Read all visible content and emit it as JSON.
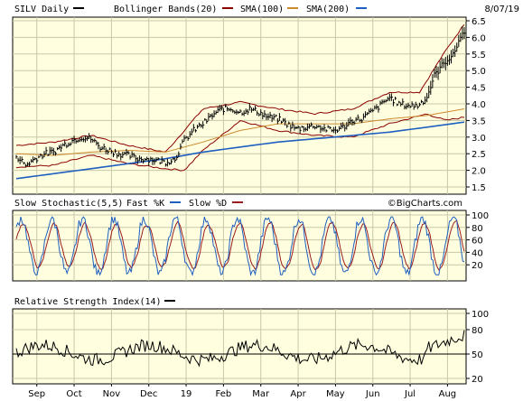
{
  "chart_data": [
    {
      "type": "line",
      "title": "SILV Daily",
      "date": "8/07/19",
      "watermark": "©BigCharts.com",
      "legend": [
        {
          "name": "SILV Daily",
          "color": "#000000"
        },
        {
          "name": "Bollinger Bands(20)",
          "color": "#8b0000"
        },
        {
          "name": "SMA(100)",
          "color": "#9b1c1c"
        },
        {
          "name": "SMA(200)",
          "color": "#cc8a2e"
        },
        {
          "name": "",
          "color": "#1f5fbf"
        }
      ],
      "y_ticks": [
        "6.5",
        "6.0",
        "5.5",
        "5.0",
        "4.5",
        "4.0",
        "3.5",
        "3.0",
        "2.5",
        "2.0",
        "1.5"
      ],
      "ylim": [
        1.5,
        6.5
      ],
      "price": [
        {
          "m": 0.0,
          "v": 2.45
        },
        {
          "m": 0.25,
          "v": 2.15
        },
        {
          "m": 0.5,
          "v": 2.35
        },
        {
          "m": 0.75,
          "v": 2.5
        },
        {
          "m": 1.0,
          "v": 2.55
        },
        {
          "m": 1.25,
          "v": 2.75
        },
        {
          "m": 1.5,
          "v": 2.9
        },
        {
          "m": 1.75,
          "v": 3.0
        },
        {
          "m": 2.0,
          "v": 2.95
        },
        {
          "m": 2.25,
          "v": 2.7
        },
        {
          "m": 2.5,
          "v": 2.6
        },
        {
          "m": 2.75,
          "v": 2.5
        },
        {
          "m": 3.0,
          "v": 2.45
        },
        {
          "m": 3.25,
          "v": 2.35
        },
        {
          "m": 3.5,
          "v": 2.35
        },
        {
          "m": 3.75,
          "v": 2.3
        },
        {
          "m": 4.0,
          "v": 2.25
        },
        {
          "m": 4.25,
          "v": 2.35
        },
        {
          "m": 4.5,
          "v": 2.9
        },
        {
          "m": 4.75,
          "v": 3.2
        },
        {
          "m": 5.0,
          "v": 3.4
        },
        {
          "m": 5.25,
          "v": 3.65
        },
        {
          "m": 5.5,
          "v": 3.85
        },
        {
          "m": 5.75,
          "v": 3.85
        },
        {
          "m": 6.0,
          "v": 3.75
        },
        {
          "m": 6.25,
          "v": 3.85
        },
        {
          "m": 6.5,
          "v": 3.75
        },
        {
          "m": 6.75,
          "v": 3.6
        },
        {
          "m": 7.0,
          "v": 3.55
        },
        {
          "m": 7.25,
          "v": 3.4
        },
        {
          "m": 7.5,
          "v": 3.25
        },
        {
          "m": 7.75,
          "v": 3.3
        },
        {
          "m": 8.0,
          "v": 3.35
        },
        {
          "m": 8.25,
          "v": 3.25
        },
        {
          "m": 8.5,
          "v": 3.2
        },
        {
          "m": 8.75,
          "v": 3.3
        },
        {
          "m": 9.0,
          "v": 3.5
        },
        {
          "m": 9.25,
          "v": 3.55
        },
        {
          "m": 9.5,
          "v": 3.75
        },
        {
          "m": 9.75,
          "v": 3.95
        },
        {
          "m": 10.0,
          "v": 4.2
        },
        {
          "m": 10.25,
          "v": 4.0
        },
        {
          "m": 10.5,
          "v": 3.95
        },
        {
          "m": 10.75,
          "v": 3.95
        },
        {
          "m": 11.0,
          "v": 4.2
        },
        {
          "m": 11.2,
          "v": 4.85
        },
        {
          "m": 11.4,
          "v": 5.15
        },
        {
          "m": 11.55,
          "v": 5.35
        },
        {
          "m": 11.7,
          "v": 5.45
        },
        {
          "m": 11.85,
          "v": 5.9
        },
        {
          "m": 12.0,
          "v": 6.2
        }
      ],
      "sma100": [
        {
          "m": 0.0,
          "v": 2.5
        },
        {
          "m": 1.0,
          "v": 2.45
        },
        {
          "m": 2.0,
          "v": 2.55
        },
        {
          "m": 3.0,
          "v": 2.6
        },
        {
          "m": 4.0,
          "v": 2.55
        },
        {
          "m": 5.0,
          "v": 2.85
        },
        {
          "m": 6.0,
          "v": 3.2
        },
        {
          "m": 7.0,
          "v": 3.4
        },
        {
          "m": 8.0,
          "v": 3.4
        },
        {
          "m": 9.0,
          "v": 3.4
        },
        {
          "m": 10.0,
          "v": 3.55
        },
        {
          "m": 11.0,
          "v": 3.65
        },
        {
          "m": 12.0,
          "v": 3.85
        }
      ],
      "sma200": [
        {
          "m": 0.0,
          "v": 1.75
        },
        {
          "m": 1.0,
          "v": 1.9
        },
        {
          "m": 2.0,
          "v": 2.05
        },
        {
          "m": 3.0,
          "v": 2.2
        },
        {
          "m": 4.0,
          "v": 2.35
        },
        {
          "m": 5.0,
          "v": 2.55
        },
        {
          "m": 6.0,
          "v": 2.7
        },
        {
          "m": 7.0,
          "v": 2.85
        },
        {
          "m": 8.0,
          "v": 2.95
        },
        {
          "m": 9.0,
          "v": 3.05
        },
        {
          "m": 10.0,
          "v": 3.15
        },
        {
          "m": 11.0,
          "v": 3.3
        },
        {
          "m": 12.0,
          "v": 3.45
        }
      ],
      "bb_upper": [
        {
          "m": 0.0,
          "v": 2.75
        },
        {
          "m": 1.0,
          "v": 2.85
        },
        {
          "m": 2.0,
          "v": 3.05
        },
        {
          "m": 3.0,
          "v": 2.75
        },
        {
          "m": 4.0,
          "v": 2.55
        },
        {
          "m": 5.0,
          "v": 3.85
        },
        {
          "m": 6.0,
          "v": 4.05
        },
        {
          "m": 7.0,
          "v": 3.85
        },
        {
          "m": 8.0,
          "v": 3.7
        },
        {
          "m": 9.0,
          "v": 3.85
        },
        {
          "m": 10.0,
          "v": 4.35
        },
        {
          "m": 10.8,
          "v": 4.35
        },
        {
          "m": 11.5,
          "v": 5.6
        },
        {
          "m": 12.0,
          "v": 6.4
        }
      ],
      "bb_lower": [
        {
          "m": 0.0,
          "v": 2.1
        },
        {
          "m": 1.0,
          "v": 2.15
        },
        {
          "m": 2.0,
          "v": 2.45
        },
        {
          "m": 3.0,
          "v": 2.2
        },
        {
          "m": 4.0,
          "v": 2.05
        },
        {
          "m": 4.5,
          "v": 2.0
        },
        {
          "m": 5.0,
          "v": 2.6
        },
        {
          "m": 6.0,
          "v": 3.5
        },
        {
          "m": 7.0,
          "v": 3.2
        },
        {
          "m": 8.0,
          "v": 3.05
        },
        {
          "m": 9.0,
          "v": 3.0
        },
        {
          "m": 10.0,
          "v": 3.4
        },
        {
          "m": 11.0,
          "v": 3.7
        },
        {
          "m": 11.5,
          "v": 3.5
        },
        {
          "m": 12.0,
          "v": 3.6
        }
      ]
    },
    {
      "type": "line",
      "title": "Slow Stochastic(5,5)",
      "legend": [
        {
          "name": "Fast %K",
          "color": "#1f5fbf"
        },
        {
          "name": "Slow %D",
          "color": "#9b1c1c"
        }
      ],
      "y_ticks": [
        "100",
        "80",
        "60",
        "40",
        "20"
      ],
      "ylim": [
        0,
        100
      ]
    },
    {
      "type": "line",
      "title": "Relative Strength Index(14)",
      "legend": [
        {
          "name": "",
          "color": "#000000"
        }
      ],
      "y_ticks": [
        "100",
        "80",
        "50",
        "20"
      ],
      "ylim": [
        0,
        100
      ],
      "reference_level": 50
    }
  ],
  "x_labels": [
    "Sep",
    "Oct",
    "Nov",
    "Dec",
    "19",
    "Feb",
    "Mar",
    "Apr",
    "May",
    "Jun",
    "Jul",
    "Aug"
  ]
}
